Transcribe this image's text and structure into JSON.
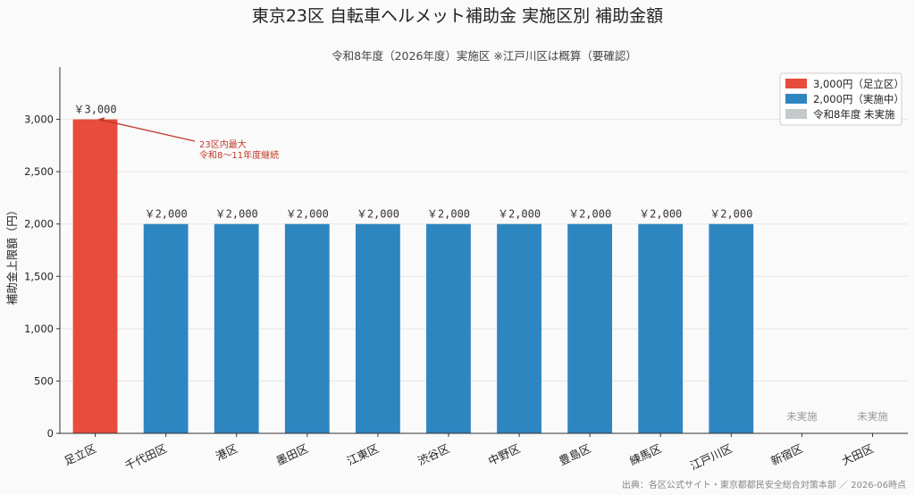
{
  "chart_data": {
    "type": "bar",
    "title": "東京23区 自転車ヘルメット補助金 実施区別 補助金額",
    "subtitle": "令和8年度（2026年度）実施区 ※江戸川区は概算（要確認）",
    "ylabel": "補助金上限額（円）",
    "xlabel": "",
    "ylim": [
      0,
      3500
    ],
    "yticks": [
      0,
      500,
      1000,
      1500,
      2000,
      2500,
      3000
    ],
    "ytick_labels": [
      "0",
      "500",
      "1,000",
      "1,500",
      "2,000",
      "2,500",
      "3,000"
    ],
    "grid": "y",
    "categories": [
      "足立区",
      "千代田区",
      "港区",
      "墨田区",
      "江東区",
      "渋谷区",
      "中野区",
      "豊島区",
      "練馬区",
      "江戸川区",
      "新宿区",
      "大田区"
    ],
    "values": [
      3000,
      2000,
      2000,
      2000,
      2000,
      2000,
      2000,
      2000,
      2000,
      2000,
      0,
      0
    ],
    "groups": [
      "3000",
      "2000",
      "2000",
      "2000",
      "2000",
      "2000",
      "2000",
      "2000",
      "2000",
      "2000",
      "none",
      "none"
    ],
    "value_labels": [
      "￥3,000",
      "￥2,000",
      "￥2,000",
      "￥2,000",
      "￥2,000",
      "￥2,000",
      "￥2,000",
      "￥2,000",
      "￥2,000",
      "￥2,000",
      "未実施",
      "未実施"
    ],
    "colors": {
      "3000": "#e74c3c",
      "2000": "#2e86c1",
      "none": "#c4c9cc"
    },
    "legend": {
      "position": "top-right",
      "entries": [
        {
          "label": "3,000円（足立区）",
          "group": "3000"
        },
        {
          "label": "2,000円（実施中）",
          "group": "2000"
        },
        {
          "label": "令和8年度 未実施",
          "group": "none"
        }
      ]
    },
    "annotation": {
      "category": "足立区",
      "lines": [
        "23区内最大",
        "令和8～11年度継続"
      ]
    },
    "source": "出典：各区公式サイト・東京都都民安全総合対策本部 ／ 2026-06時点"
  }
}
